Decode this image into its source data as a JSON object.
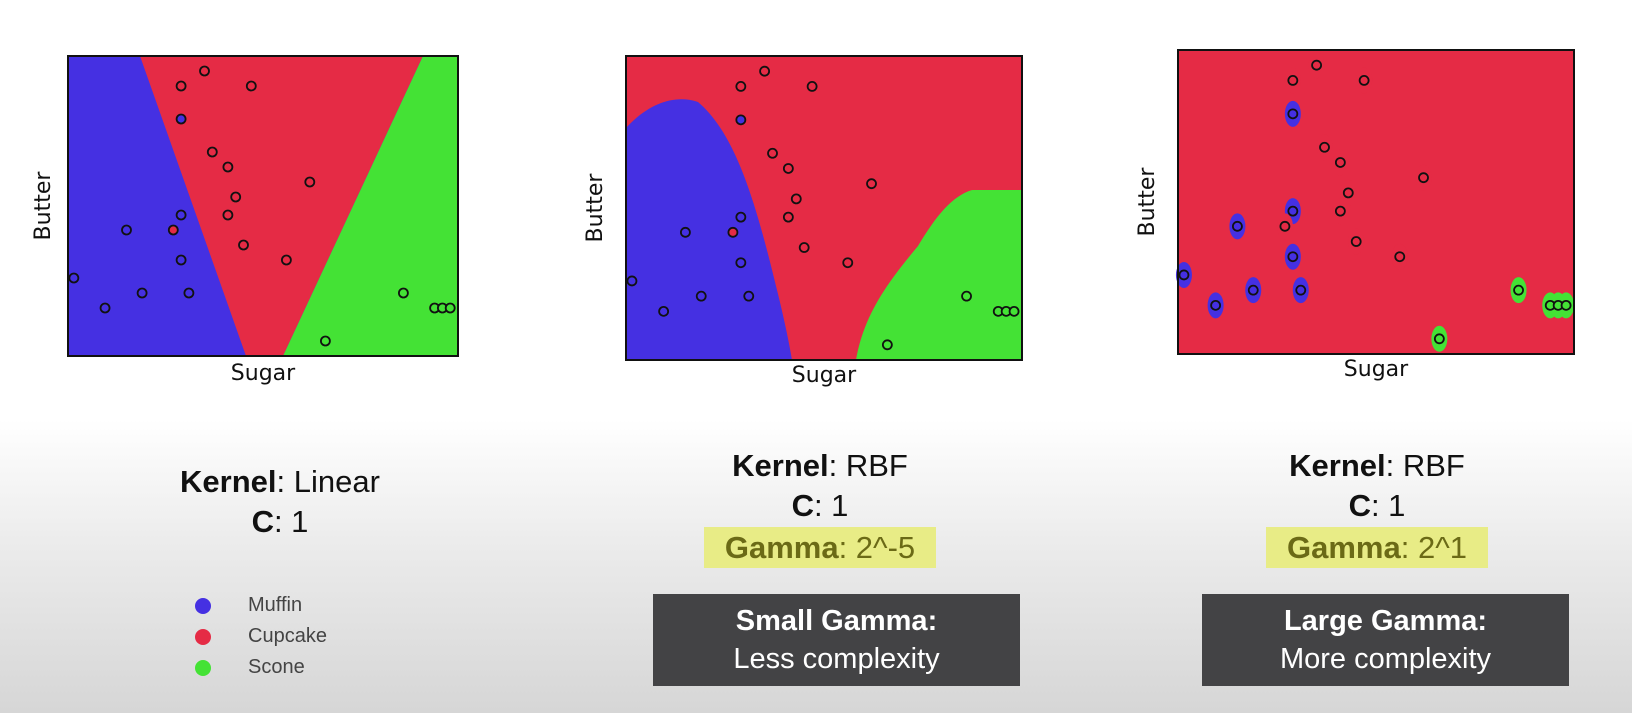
{
  "colors": {
    "muffin": "#4530e2",
    "cupcake": "#e52b45",
    "scone": "#44e235",
    "highlight_bg": "#e8ec86",
    "note_bg": "#434345"
  },
  "legend": [
    {
      "label": "Muffin",
      "color": "#4530e2"
    },
    {
      "label": "Cupcake",
      "color": "#e52b45"
    },
    {
      "label": "Scone",
      "color": "#44e235"
    }
  ],
  "panels": [
    {
      "kernel_label": "Kernel",
      "kernel_value": ": Linear",
      "c_label": "C",
      "c_value": ": 1"
    },
    {
      "kernel_label": "Kernel",
      "kernel_value": ": RBF",
      "c_label": "C",
      "c_value": ": 1",
      "gamma_label": "Gamma",
      "gamma_value": ": 2^-5",
      "note_title": "Small Gamma:",
      "note_sub": "Less complexity"
    },
    {
      "kernel_label": "Kernel",
      "kernel_value": ": RBF",
      "c_label": "C",
      "c_value": ": 1",
      "gamma_label": "Gamma",
      "gamma_value": ": 2^1",
      "note_title": "Large Gamma:",
      "note_sub": "More complexity"
    }
  ],
  "chart_data": [
    {
      "type": "scatter",
      "title": "",
      "xlabel": "Sugar",
      "ylabel": "Butter",
      "xlim": [
        0,
        100
      ],
      "ylim": [
        0,
        100
      ],
      "background_region": "linear",
      "series": [
        {
          "name": "Muffin",
          "color": "#4530e2",
          "x": [
            1.5,
            9.5,
            15,
            19,
            29,
            29,
            29,
            31
          ],
          "y": [
            26,
            16,
            42,
            21,
            79,
            47,
            32,
            21
          ]
        },
        {
          "name": "Cupcake",
          "color": "#e52b45",
          "x": [
            29,
            35,
            47,
            27,
            37,
            41,
            43,
            41,
            45,
            56,
            62
          ],
          "y": [
            90,
            95,
            90,
            42,
            68,
            63,
            53,
            47,
            37,
            32,
            58
          ]
        },
        {
          "name": "Scone",
          "color": "#44e235",
          "x": [
            66,
            86,
            94,
            96,
            98
          ],
          "y": [
            5,
            21,
            16,
            16,
            16
          ]
        }
      ]
    },
    {
      "type": "scatter",
      "title": "",
      "xlabel": "Sugar",
      "ylabel": "Butter",
      "xlim": [
        0,
        100
      ],
      "ylim": [
        0,
        100
      ],
      "background_region": "rbf-small-gamma",
      "series": [
        {
          "name": "Muffin",
          "color": "#4530e2",
          "x": [
            1.5,
            9.5,
            15,
            19,
            29,
            29,
            29,
            31
          ],
          "y": [
            26,
            16,
            42,
            21,
            79,
            47,
            32,
            21
          ]
        },
        {
          "name": "Cupcake",
          "color": "#e52b45",
          "x": [
            29,
            35,
            47,
            27,
            37,
            41,
            43,
            41,
            45,
            56,
            62
          ],
          "y": [
            90,
            95,
            90,
            42,
            68,
            63,
            53,
            47,
            37,
            32,
            58
          ]
        },
        {
          "name": "Scone",
          "color": "#44e235",
          "x": [
            66,
            86,
            94,
            96,
            98
          ],
          "y": [
            5,
            21,
            16,
            16,
            16
          ]
        }
      ]
    },
    {
      "type": "scatter",
      "title": "",
      "xlabel": "Sugar",
      "ylabel": "Butter",
      "xlim": [
        0,
        100
      ],
      "ylim": [
        0,
        100
      ],
      "background_region": "rbf-large-gamma",
      "series": [
        {
          "name": "Muffin",
          "color": "#4530e2",
          "x": [
            1.5,
            9.5,
            15,
            19,
            29,
            29,
            29,
            31
          ],
          "y": [
            26,
            16,
            42,
            21,
            79,
            47,
            32,
            21
          ]
        },
        {
          "name": "Cupcake",
          "color": "#e52b45",
          "x": [
            29,
            35,
            47,
            27,
            37,
            41,
            43,
            41,
            45,
            56,
            62
          ],
          "y": [
            90,
            95,
            90,
            42,
            68,
            63,
            53,
            47,
            37,
            32,
            58
          ]
        },
        {
          "name": "Scone",
          "color": "#44e235",
          "x": [
            66,
            86,
            94,
            96,
            98
          ],
          "y": [
            5,
            21,
            16,
            16,
            16
          ]
        }
      ]
    }
  ]
}
